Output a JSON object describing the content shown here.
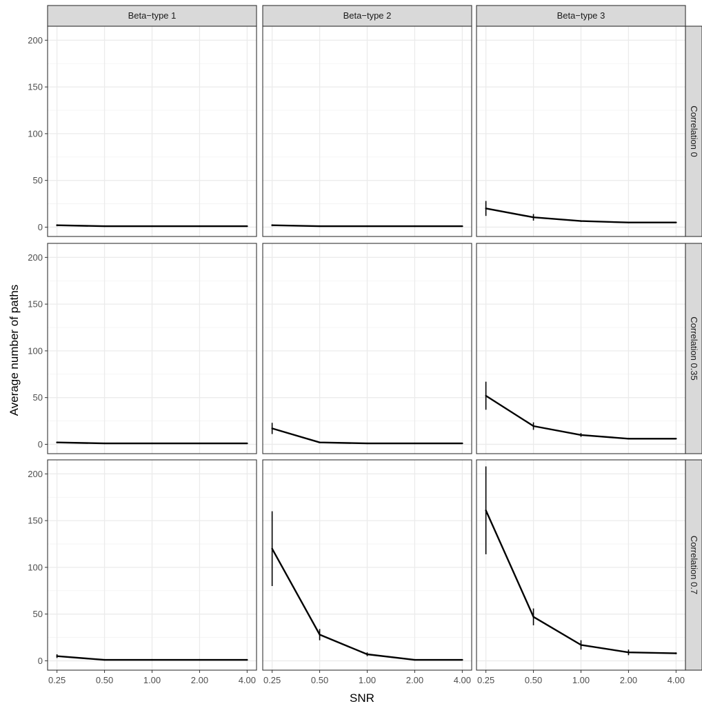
{
  "chart_data": {
    "type": "line",
    "xlabel": "SNR",
    "ylabel": "Average number of paths",
    "x": [
      "0.25",
      "0.50",
      "1.00",
      "2.00",
      "4.00"
    ],
    "ylim": [
      -10,
      215
    ],
    "yticks": [
      0,
      50,
      100,
      150,
      200
    ],
    "grid": true,
    "col_facets": [
      "Beta−type 1",
      "Beta−type 2",
      "Beta−type 3"
    ],
    "row_facets": [
      "Correlation 0",
      "Correlation 0.35",
      "Correlation 0.7"
    ],
    "line_color": "#000000",
    "panels": [
      {
        "row": 0,
        "col": 0,
        "values": [
          2,
          1,
          1,
          1,
          1
        ],
        "err": [
          1,
          0,
          0,
          0,
          0
        ]
      },
      {
        "row": 0,
        "col": 1,
        "values": [
          2,
          1,
          1,
          1,
          1
        ],
        "err": [
          1,
          0,
          0,
          0,
          0
        ]
      },
      {
        "row": 0,
        "col": 2,
        "values": [
          20,
          10.5,
          6.5,
          5,
          5
        ],
        "err": [
          8,
          3.5,
          0.8,
          0.5,
          0.5
        ]
      },
      {
        "row": 1,
        "col": 0,
        "values": [
          2,
          1,
          1,
          1,
          1
        ],
        "err": [
          0.8,
          0,
          0,
          0,
          0
        ]
      },
      {
        "row": 1,
        "col": 1,
        "values": [
          17,
          2,
          1,
          1,
          1
        ],
        "err": [
          6,
          0.6,
          0,
          0,
          0
        ]
      },
      {
        "row": 1,
        "col": 2,
        "values": [
          52,
          19.5,
          10,
          6,
          6
        ],
        "err": [
          15,
          4,
          2,
          0.8,
          0.5
        ]
      },
      {
        "row": 2,
        "col": 0,
        "values": [
          5,
          1,
          1,
          1,
          1
        ],
        "err": [
          2,
          0,
          0,
          0,
          0
        ]
      },
      {
        "row": 2,
        "col": 1,
        "values": [
          120,
          28,
          7,
          1,
          1
        ],
        "err": [
          40,
          6,
          2,
          0.5,
          0
        ]
      },
      {
        "row": 2,
        "col": 2,
        "values": [
          161,
          47,
          17,
          9,
          8
        ],
        "err": [
          47,
          9,
          5,
          3,
          1
        ]
      }
    ]
  }
}
